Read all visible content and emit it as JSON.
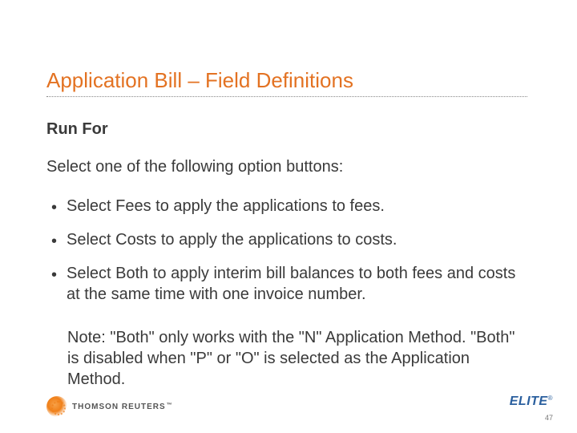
{
  "title": "Application Bill – Field Definitions",
  "subheading": "Run For",
  "intro": "Select one of the following option buttons:",
  "bullets": [
    "Select Fees to apply the applications to fees.",
    "Select Costs to apply the applications to costs.",
    "Select Both to apply interim bill balances to both fees and costs at the same time with one invoice number."
  ],
  "note": "Note: \"Both\" only works with the \"N\" Application Method. \"Both\" is disabled when \"P\" or \"O\" is selected as the Application Method.",
  "footer": {
    "brand_left": "THOMSON REUTERS",
    "brand_right": "ELITE",
    "page_number": "47"
  },
  "colors": {
    "title_color": "#e37222",
    "text_color": "#3a3a3a",
    "elite_color": "#2a5f9e"
  }
}
